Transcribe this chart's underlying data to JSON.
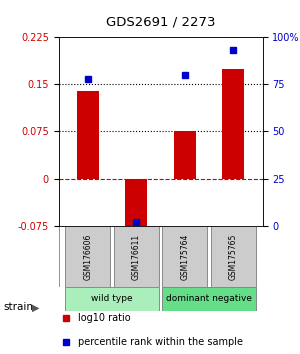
{
  "title": "GDS2691 / 2273",
  "samples": [
    "GSM176606",
    "GSM176611",
    "GSM175764",
    "GSM175765"
  ],
  "log10_ratio": [
    0.14,
    -0.085,
    0.075,
    0.175
  ],
  "percentile_rank": [
    78,
    2,
    80,
    93
  ],
  "bar_color": "#cc0000",
  "dot_color": "#0000cc",
  "left_ylim": [
    -0.075,
    0.225
  ],
  "right_ylim": [
    0,
    100
  ],
  "left_yticks": [
    -0.075,
    0,
    0.075,
    0.15,
    0.225
  ],
  "right_yticks": [
    0,
    25,
    50,
    75,
    100
  ],
  "hline_dotted": [
    0.075,
    0.15
  ],
  "hline_dashed": 0.0,
  "groups": [
    {
      "label": "wild type",
      "samples": [
        0,
        1
      ],
      "color": "#aaeebb"
    },
    {
      "label": "dominant negative",
      "samples": [
        2,
        3
      ],
      "color": "#66dd88"
    }
  ],
  "legend_items": [
    {
      "color": "#cc0000",
      "label": "log10 ratio"
    },
    {
      "color": "#0000cc",
      "label": "percentile rank within the sample"
    }
  ],
  "strain_label": "strain",
  "background_color": "#ffffff",
  "plot_bg_color": "#ffffff",
  "gray_box_color": "#cccccc",
  "gray_box_edge_color": "#666666"
}
